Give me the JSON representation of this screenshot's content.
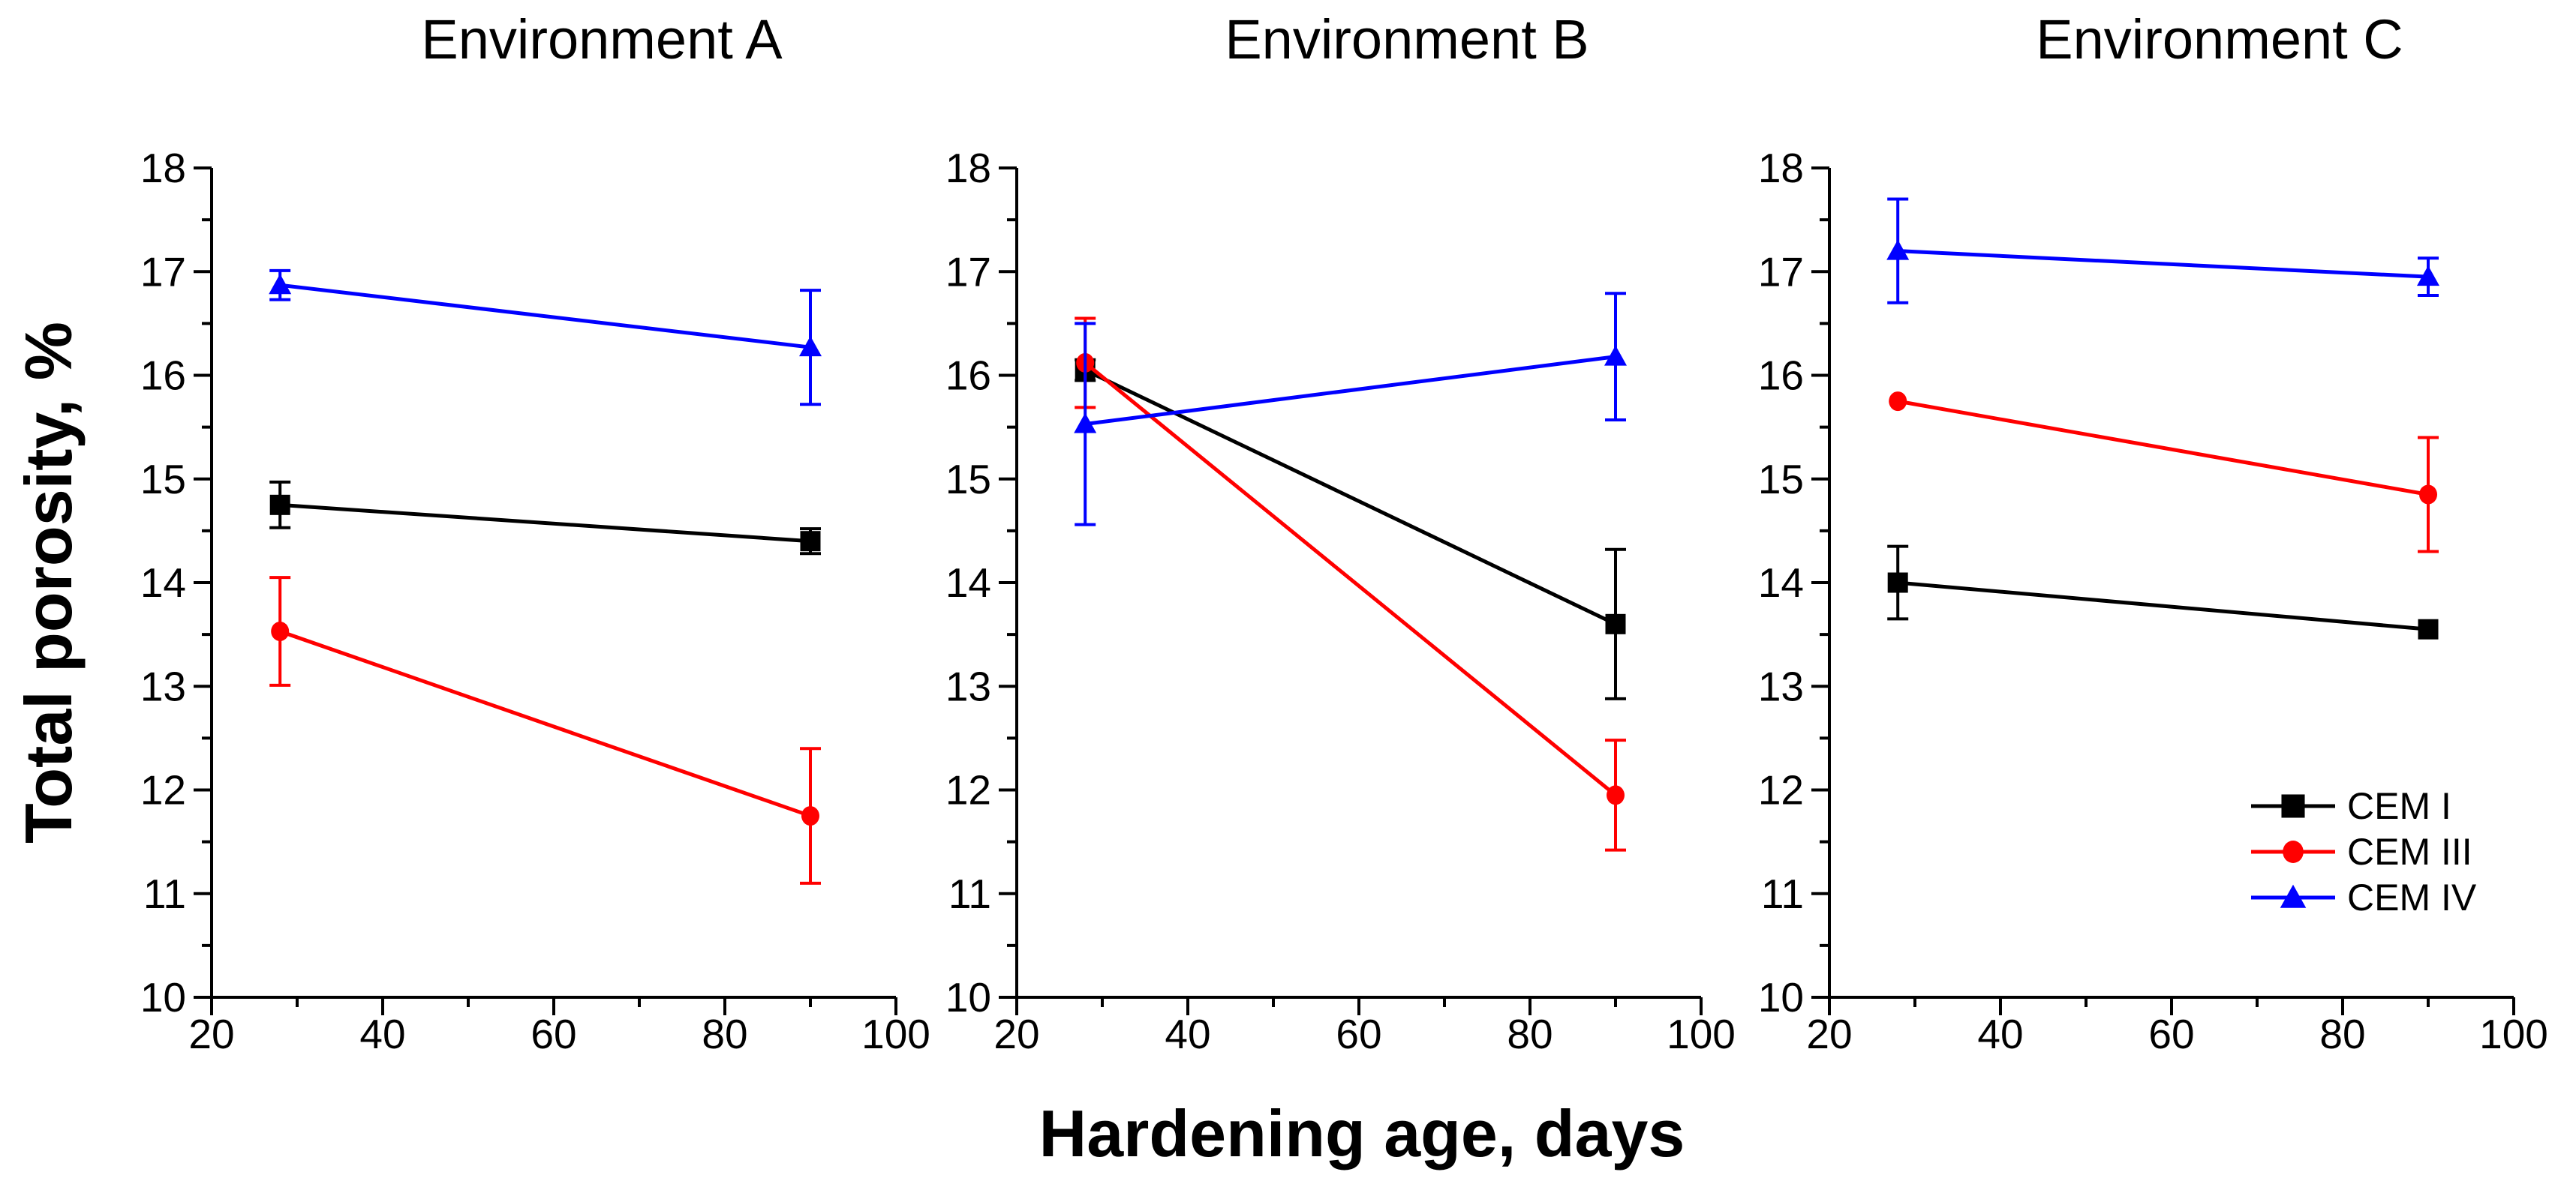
{
  "figure": {
    "background": "#FFFFFF",
    "text_color": "#000000"
  },
  "chart_data": {
    "type": "line",
    "xlabel": "Hardening age, days",
    "ylabel": "Total porosity, %",
    "xlim": [
      20,
      100
    ],
    "ylim": [
      10,
      18
    ],
    "x_major_ticks": [
      20,
      40,
      60,
      80,
      100
    ],
    "x_minor_ticks": [
      30,
      50,
      70,
      90
    ],
    "y_major_ticks": [
      10,
      11,
      12,
      13,
      14,
      15,
      16,
      17,
      18
    ],
    "y_minor_ticks": [
      10.5,
      11.5,
      12.5,
      13.5,
      14.5,
      15.5,
      16.5,
      17.5
    ],
    "grid": false,
    "x": [
      28,
      90
    ],
    "panels": [
      {
        "title": "Environment A",
        "series": [
          {
            "name": "CEM I",
            "color": "#000000",
            "marker": "square",
            "x": [
              28,
              90
            ],
            "y": [
              14.75,
              14.4
            ],
            "yerr": [
              0.22,
              0.12
            ]
          },
          {
            "name": "CEM III",
            "color": "#FF0000",
            "marker": "circle",
            "x": [
              28,
              90
            ],
            "y": [
              13.53,
              11.75
            ],
            "yerr": [
              0.52,
              0.65
            ]
          },
          {
            "name": "CEM IV",
            "color": "#0000FF",
            "marker": "triangle",
            "x": [
              28,
              90
            ],
            "y": [
              16.87,
              16.27
            ],
            "yerr": [
              0.14,
              0.55
            ]
          }
        ]
      },
      {
        "title": "Environment B",
        "series": [
          {
            "name": "CEM I",
            "color": "#000000",
            "marker": "square",
            "x": [
              28,
              90
            ],
            "y": [
              16.05,
              13.6
            ],
            "yerr": [
              0.1,
              0.72
            ]
          },
          {
            "name": "CEM III",
            "color": "#FF0000",
            "marker": "circle",
            "x": [
              28,
              90
            ],
            "y": [
              16.12,
              11.95
            ],
            "yerr": [
              0.43,
              0.53
            ]
          },
          {
            "name": "CEM IV",
            "color": "#0000FF",
            "marker": "triangle",
            "x": [
              28,
              90
            ],
            "y": [
              15.53,
              16.18
            ],
            "yerr": [
              0.97,
              0.61
            ]
          }
        ]
      },
      {
        "title": "Environment C",
        "series": [
          {
            "name": "CEM I",
            "color": "#000000",
            "marker": "square",
            "x": [
              28,
              90
            ],
            "y": [
              14.0,
              13.55
            ],
            "yerr": [
              0.35,
              0
            ]
          },
          {
            "name": "CEM III",
            "color": "#FF0000",
            "marker": "circle",
            "x": [
              28,
              90
            ],
            "y": [
              15.75,
              14.85
            ],
            "yerr": [
              0,
              0.55
            ]
          },
          {
            "name": "CEM IV",
            "color": "#0000FF",
            "marker": "triangle",
            "x": [
              28,
              90
            ],
            "y": [
              17.2,
              16.95
            ],
            "yerr": [
              0.5,
              0.18
            ]
          }
        ]
      }
    ],
    "legend": {
      "position": "bottom-right-of-third-panel",
      "entries": [
        {
          "label": "CEM I",
          "color": "#000000",
          "marker": "square"
        },
        {
          "label": "CEM III",
          "color": "#FF0000",
          "marker": "circle"
        },
        {
          "label": "CEM IV",
          "color": "#0000FF",
          "marker": "triangle"
        }
      ]
    }
  }
}
